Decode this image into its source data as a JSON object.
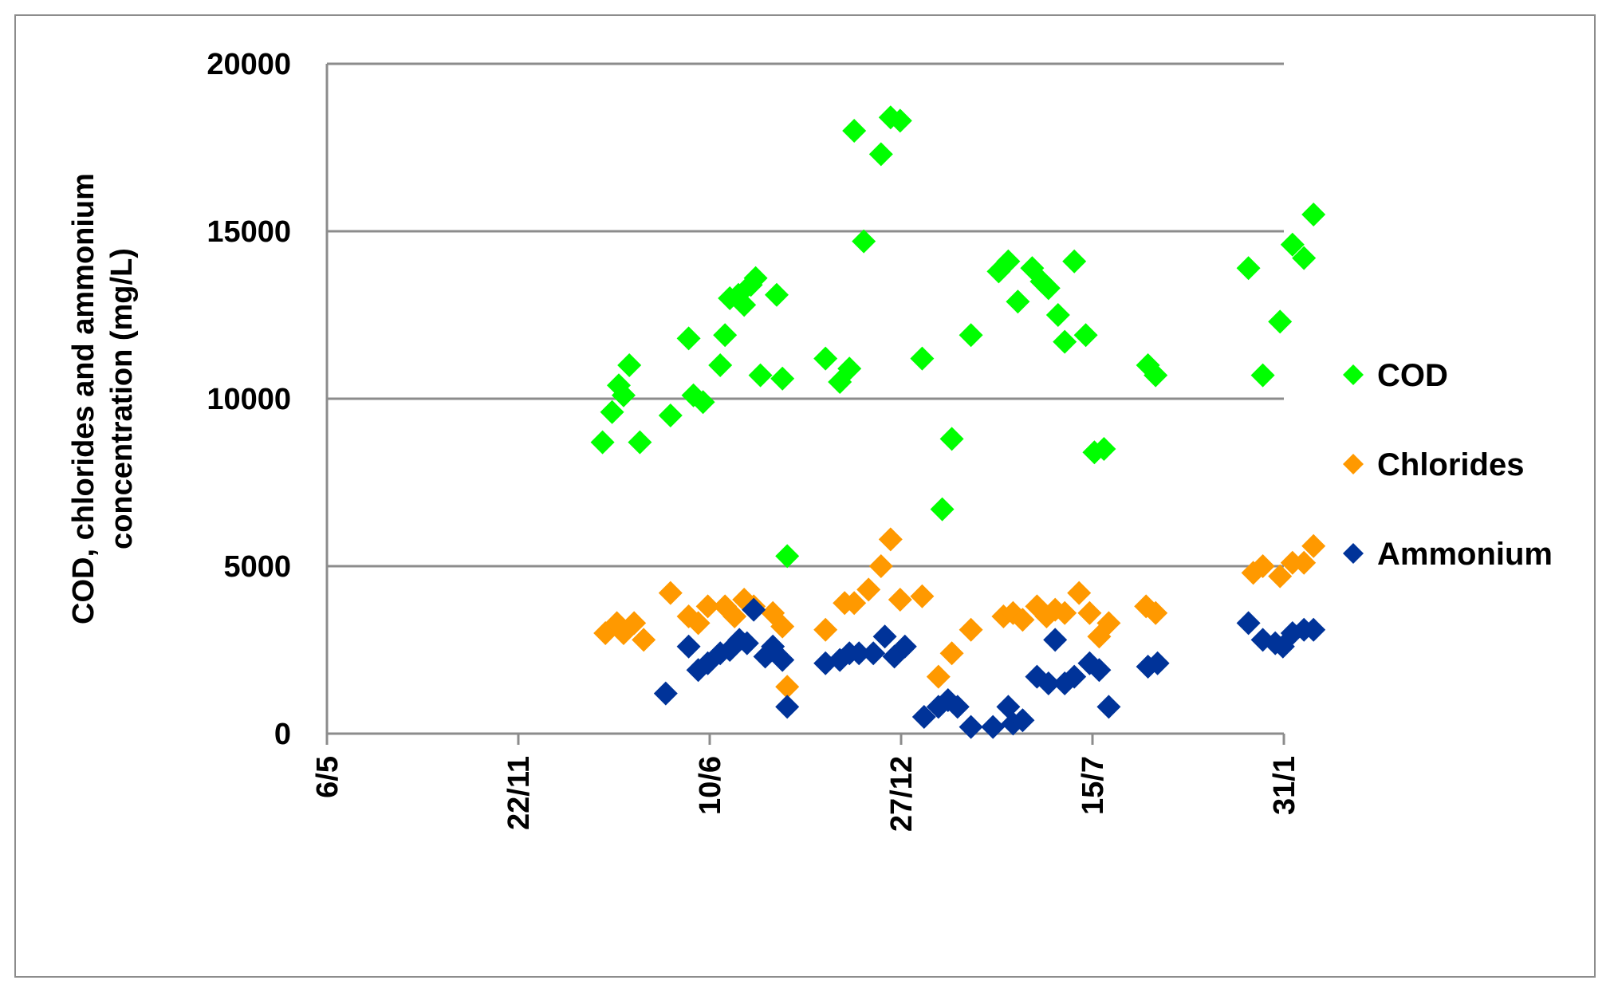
{
  "chart_data": {
    "type": "scatter",
    "title": "",
    "xlabel": "",
    "ylabel_lines": [
      "COD, chlorides and ammonium",
      "concentration (mg/L)"
    ],
    "x_ticks": [
      "6/5",
      "22/11",
      "10/6",
      "27/12",
      "15/7",
      "31/1"
    ],
    "x_tick_spacing_days": 200,
    "ylim": [
      0,
      20000
    ],
    "y_ticks": [
      0,
      5000,
      10000,
      15000,
      20000
    ],
    "grid": "horizontal",
    "legend_position": "right",
    "series": [
      {
        "name": "COD",
        "color": "#00ff00",
        "points": [
          [
            288,
            8700
          ],
          [
            298,
            9600
          ],
          [
            305,
            10400
          ],
          [
            310,
            10100
          ],
          [
            316,
            11000
          ],
          [
            327,
            8700
          ],
          [
            359,
            9500
          ],
          [
            378,
            11800
          ],
          [
            383,
            10100
          ],
          [
            393,
            9900
          ],
          [
            411,
            11000
          ],
          [
            416,
            11900
          ],
          [
            421,
            13000
          ],
          [
            430,
            13100
          ],
          [
            436,
            12800
          ],
          [
            443,
            13400
          ],
          [
            448,
            13600
          ],
          [
            453,
            10700
          ],
          [
            470,
            13100
          ],
          [
            476,
            10600
          ],
          [
            481,
            5300
          ],
          [
            521,
            11200
          ],
          [
            536,
            10500
          ],
          [
            546,
            10900
          ],
          [
            551,
            18000
          ],
          [
            561,
            14700
          ],
          [
            579,
            17300
          ],
          [
            589,
            18400
          ],
          [
            599,
            18300
          ],
          [
            622,
            11200
          ],
          [
            643,
            6700
          ],
          [
            653,
            8800
          ],
          [
            673,
            11900
          ],
          [
            702,
            13800
          ],
          [
            712,
            14100
          ],
          [
            722,
            12900
          ],
          [
            737,
            13900
          ],
          [
            747,
            13500
          ],
          [
            754,
            13300
          ],
          [
            764,
            12500
          ],
          [
            771,
            11700
          ],
          [
            781,
            14100
          ],
          [
            793,
            11900
          ],
          [
            802,
            8400
          ],
          [
            812,
            8500
          ],
          [
            858,
            11000
          ],
          [
            866,
            10700
          ],
          [
            963,
            13900
          ],
          [
            978,
            10700
          ],
          [
            996,
            12300
          ],
          [
            1009,
            14600
          ],
          [
            1021,
            14200
          ],
          [
            1031,
            15500
          ]
        ]
      },
      {
        "name": "Chlorides",
        "color": "#ff9900",
        "points": [
          [
            291,
            3000
          ],
          [
            303,
            3300
          ],
          [
            310,
            3000
          ],
          [
            321,
            3300
          ],
          [
            331,
            2800
          ],
          [
            359,
            4200
          ],
          [
            378,
            3500
          ],
          [
            388,
            3300
          ],
          [
            398,
            3800
          ],
          [
            416,
            3800
          ],
          [
            426,
            3500
          ],
          [
            436,
            4000
          ],
          [
            446,
            3800
          ],
          [
            466,
            3600
          ],
          [
            476,
            3200
          ],
          [
            481,
            1400
          ],
          [
            521,
            3100
          ],
          [
            541,
            3900
          ],
          [
            551,
            3900
          ],
          [
            566,
            4300
          ],
          [
            579,
            5000
          ],
          [
            589,
            5800
          ],
          [
            599,
            4000
          ],
          [
            622,
            4100
          ],
          [
            639,
            1700
          ],
          [
            653,
            2400
          ],
          [
            673,
            3100
          ],
          [
            707,
            3500
          ],
          [
            717,
            3600
          ],
          [
            727,
            3400
          ],
          [
            742,
            3800
          ],
          [
            752,
            3500
          ],
          [
            761,
            3700
          ],
          [
            771,
            3600
          ],
          [
            786,
            4200
          ],
          [
            797,
            3600
          ],
          [
            807,
            2900
          ],
          [
            817,
            3300
          ],
          [
            856,
            3800
          ],
          [
            866,
            3600
          ],
          [
            968,
            4800
          ],
          [
            978,
            5000
          ],
          [
            996,
            4700
          ],
          [
            1009,
            5100
          ],
          [
            1021,
            5100
          ],
          [
            1031,
            5600
          ]
        ]
      },
      {
        "name": "Ammonium",
        "color": "#003399",
        "points": [
          [
            354,
            1200
          ],
          [
            378,
            2600
          ],
          [
            388,
            1900
          ],
          [
            398,
            2100
          ],
          [
            411,
            2400
          ],
          [
            421,
            2500
          ],
          [
            431,
            2800
          ],
          [
            439,
            2700
          ],
          [
            446,
            3700
          ],
          [
            458,
            2300
          ],
          [
            466,
            2600
          ],
          [
            476,
            2200
          ],
          [
            481,
            800
          ],
          [
            521,
            2100
          ],
          [
            536,
            2200
          ],
          [
            546,
            2400
          ],
          [
            556,
            2400
          ],
          [
            571,
            2400
          ],
          [
            583,
            2900
          ],
          [
            593,
            2300
          ],
          [
            604,
            2600
          ],
          [
            624,
            500
          ],
          [
            639,
            800
          ],
          [
            649,
            1000
          ],
          [
            659,
            800
          ],
          [
            673,
            200
          ],
          [
            696,
            200
          ],
          [
            712,
            800
          ],
          [
            717,
            300
          ],
          [
            727,
            400
          ],
          [
            742,
            1700
          ],
          [
            754,
            1500
          ],
          [
            761,
            2800
          ],
          [
            771,
            1500
          ],
          [
            781,
            1700
          ],
          [
            797,
            2100
          ],
          [
            807,
            1900
          ],
          [
            817,
            800
          ],
          [
            858,
            2000
          ],
          [
            868,
            2100
          ],
          [
            963,
            3300
          ],
          [
            978,
            2800
          ],
          [
            991,
            2700
          ],
          [
            999,
            2600
          ],
          [
            1009,
            3000
          ],
          [
            1021,
            3100
          ],
          [
            1031,
            3100
          ]
        ]
      }
    ]
  }
}
